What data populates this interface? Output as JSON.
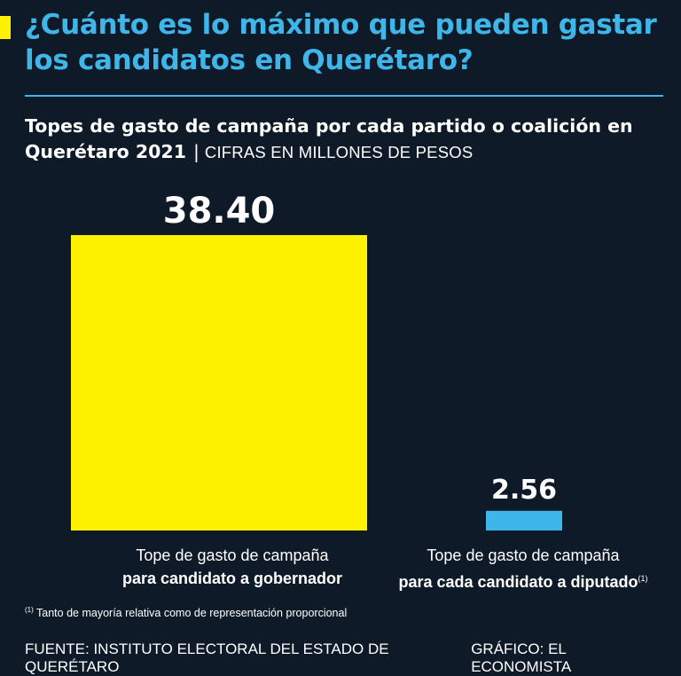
{
  "colors": {
    "background": "#0f1a28",
    "accent_yellow": "#fff200",
    "accent_blue": "#3fb6ea",
    "headline": "#3fb6ea",
    "text": "#ffffff"
  },
  "header": {
    "title": "¿Cuánto es lo máximo que pueden gastar los candidatos en Querétaro?",
    "subtitle": "Topes de gasto de campaña por cada partido o coalición en Querétaro 2021",
    "separator": "|",
    "units_note": "CIFRAS EN MILLONES DE PESOS"
  },
  "chart_data": {
    "type": "bar",
    "categories": [
      {
        "line1": "Tope de gasto de campaña",
        "line2": "para candidato a gobernador",
        "superscript": ""
      },
      {
        "line1": "Tope de gasto de campaña",
        "line2": "para cada candidato a diputado",
        "superscript": "(1)"
      }
    ],
    "values": [
      38.4,
      2.56
    ],
    "value_labels": [
      "38.40",
      "2.56"
    ],
    "bar_colors": [
      "#fff200",
      "#3fb6ea"
    ],
    "ylim": [
      0,
      38.4
    ],
    "grid": false,
    "legend": "none"
  },
  "footnote": {
    "marker": "(1)",
    "text": "Tanto de mayoría relativa como de representación proporcional"
  },
  "footer": {
    "source": "FUENTE: INSTITUTO ELECTORAL DEL ESTADO DE QUERÉTARO",
    "credit": "GRÁFICO: EL ECONOMISTA"
  }
}
